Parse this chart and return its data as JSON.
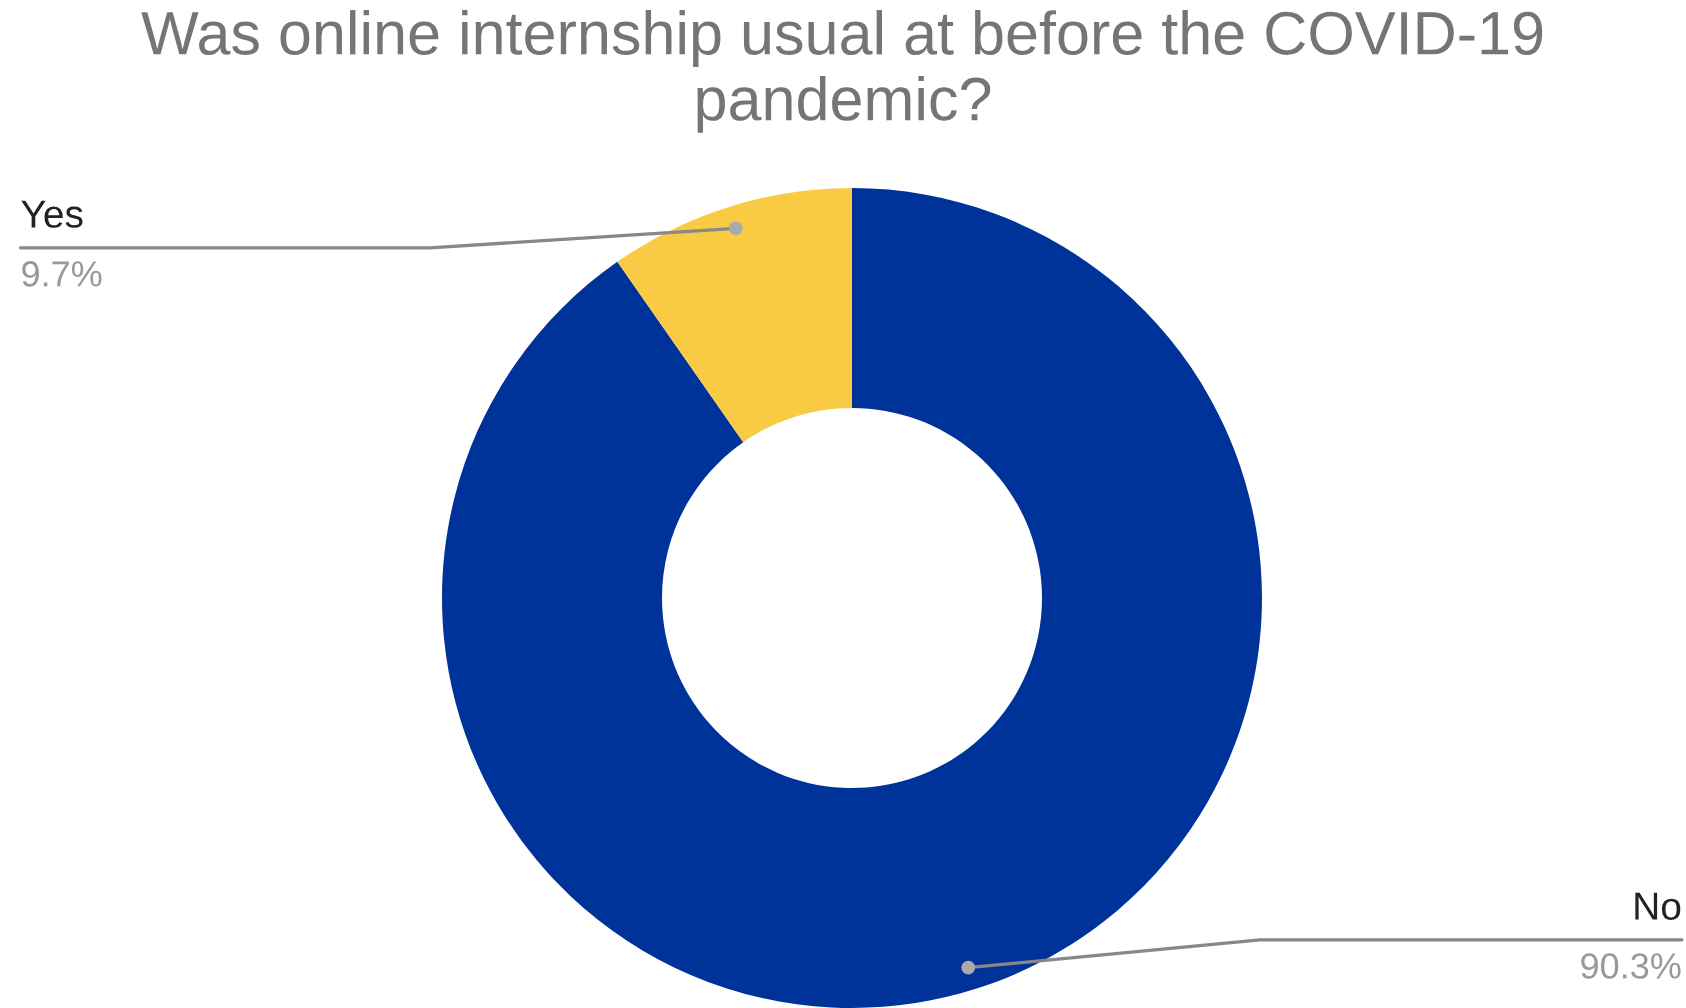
{
  "chart_data": {
    "type": "donut",
    "title": "Was online internship usual at before the COVID-19 pandemic?",
    "categories": [
      "No",
      "Yes"
    ],
    "values": [
      90.3,
      9.7
    ],
    "value_labels": [
      "90.3%",
      "9.7%"
    ],
    "colors": [
      "#003399",
      "#f9cb45"
    ],
    "legend": false
  }
}
